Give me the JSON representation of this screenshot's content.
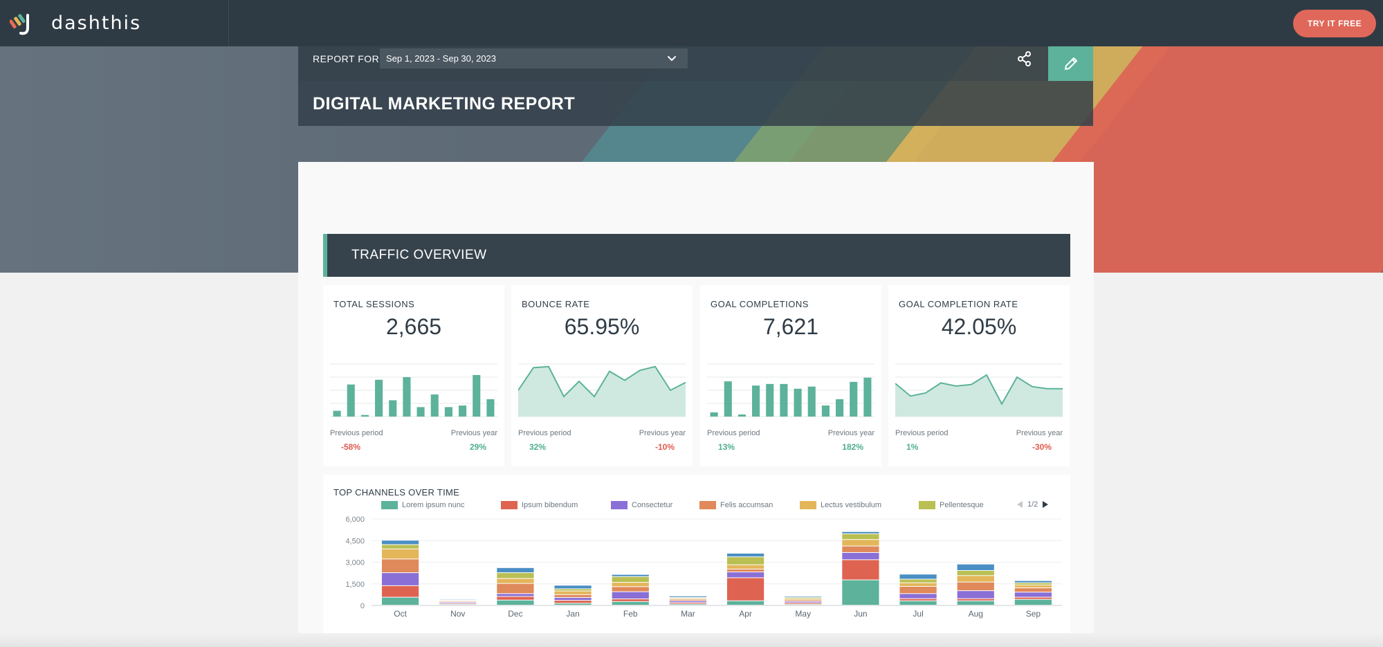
{
  "brand": {
    "name": "dashthis"
  },
  "header": {
    "try_label": "TRY IT FREE"
  },
  "report": {
    "label": "REPORT FOR",
    "date_range": "Sep 1, 2023 - Sep 30, 2023",
    "title": "DIGITAL MARKETING REPORT"
  },
  "section": {
    "title": "TRAFFIC OVERVIEW"
  },
  "colors": {
    "accent": "#5cb29a",
    "positive": "#4caf8c",
    "negative": "#df5a4e",
    "dark": "#2f3b44",
    "cta": "#e0685a"
  },
  "kpis": [
    {
      "title": "TOTAL SESSIONS",
      "value": "2,665",
      "type": "bar",
      "spark": [
        11,
        61,
        3,
        70,
        31,
        75,
        18,
        42,
        18,
        21,
        79,
        33
      ],
      "ymax": 100,
      "prev_label": "Previous period",
      "prev_value": "-58%",
      "prev_sign": "neg",
      "year_label": "Previous year",
      "year_value": "29%",
      "year_sign": "pos"
    },
    {
      "title": "BOUNCE RATE",
      "value": "65.95%",
      "type": "area",
      "spark": [
        50,
        93,
        95,
        38,
        67,
        38,
        86,
        69,
        88,
        95,
        50,
        65
      ],
      "ymax": 100,
      "prev_label": "Previous period",
      "prev_value": "32%",
      "prev_sign": "pos",
      "year_label": "Previous year",
      "year_value": "-10%",
      "year_sign": "neg"
    },
    {
      "title": "GOAL COMPLETIONS",
      "value": "7,621",
      "type": "bar",
      "spark": [
        8,
        67,
        4,
        59,
        62,
        62,
        53,
        57,
        21,
        33,
        66,
        74
      ],
      "ymax": 100,
      "prev_label": "Previous period",
      "prev_value": "13%",
      "prev_sign": "pos",
      "year_label": "Previous year",
      "year_value": "182%",
      "year_sign": "pos"
    },
    {
      "title": "GOAL COMPLETION RATE",
      "value": "42.05%",
      "type": "area",
      "spark": [
        63,
        39,
        45,
        64,
        58,
        61,
        79,
        24,
        75,
        57,
        53,
        53
      ],
      "ymax": 100,
      "prev_label": "Previous period",
      "prev_value": "1%",
      "prev_sign": "pos",
      "year_label": "Previous year",
      "year_value": "-30%",
      "year_sign": "neg"
    }
  ],
  "chart_data": {
    "type": "bar",
    "stacked": true,
    "title": "TOP CHANNELS OVER TIME",
    "categories": [
      "Oct",
      "Nov",
      "Dec",
      "Jan",
      "Feb",
      "Mar",
      "Apr",
      "May",
      "Jun",
      "Jul",
      "Aug",
      "Sep"
    ],
    "ylim": [
      0,
      6000
    ],
    "yticks": [
      "0",
      "1,500",
      "3,000",
      "4,500",
      "6,000"
    ],
    "grid": true,
    "legend_position": "top",
    "pager": "1/2",
    "series": [
      {
        "name": "Lorem ipsum nunc",
        "color": "#5cb29a",
        "values": [
          550,
          60,
          350,
          130,
          250,
          80,
          300,
          60,
          1750,
          300,
          300,
          400
        ]
      },
      {
        "name": "Ipsum bibendum",
        "color": "#df6351",
        "values": [
          800,
          70,
          250,
          200,
          180,
          100,
          1600,
          100,
          1400,
          150,
          150,
          150
        ]
      },
      {
        "name": "Consectetur",
        "color": "#8a6fd6",
        "values": [
          900,
          80,
          200,
          200,
          500,
          120,
          400,
          100,
          500,
          350,
          550,
          350
        ]
      },
      {
        "name": "Felis accumsan",
        "color": "#e0895a",
        "values": [
          950,
          60,
          700,
          200,
          350,
          100,
          200,
          100,
          450,
          500,
          600,
          300
        ]
      },
      {
        "name": "Lectus vestibulum",
        "color": "#e3b65a",
        "values": [
          700,
          60,
          350,
          250,
          300,
          80,
          300,
          100,
          450,
          250,
          450,
          200
        ]
      },
      {
        "name": "Pellentesque",
        "color": "#b9bf52",
        "values": [
          300,
          40,
          400,
          150,
          400,
          60,
          550,
          80,
          400,
          250,
          350,
          150
        ]
      },
      {
        "name": "",
        "color": "#4a8fc4",
        "values": [
          300,
          60,
          350,
          250,
          150,
          100,
          250,
          80,
          150,
          350,
          450,
          150
        ]
      }
    ]
  }
}
